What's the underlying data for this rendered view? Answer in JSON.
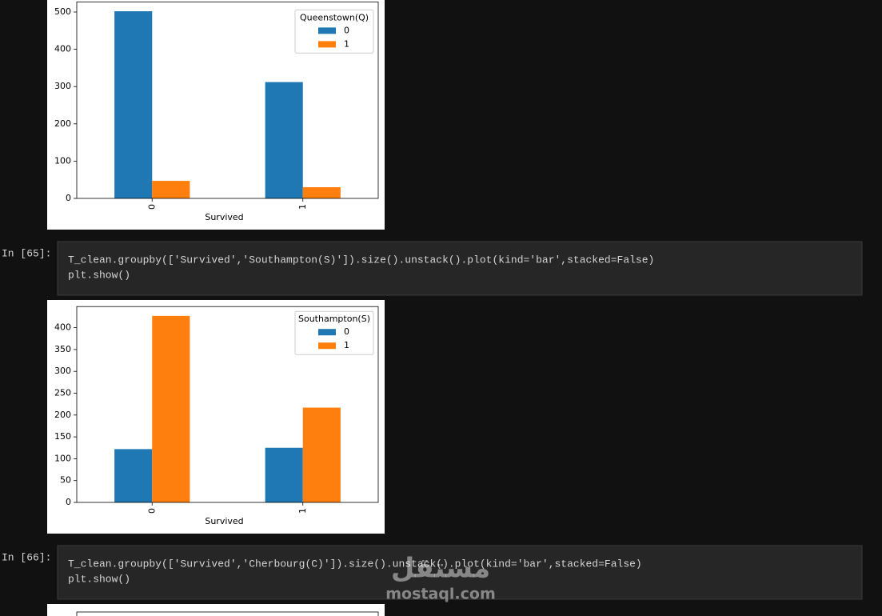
{
  "cells": [
    {
      "prompt": "In [65]:",
      "code": [
        "T_clean.groupby(['Survived','Southampton(S)']).size().unstack().plot(kind='bar',stacked=False)",
        "plt.show()"
      ]
    },
    {
      "prompt": "In [66]:",
      "code": [
        "T_clean.groupby(['Survived','Cherbourg(C)']).size().unstack().plot(kind='bar',stacked=False)",
        "plt.show()"
      ]
    }
  ],
  "watermark": {
    "logo": "مستقل",
    "text": "mostaql.com"
  },
  "chart_data": [
    {
      "type": "bar",
      "xlabel": "Survived",
      "categories": [
        "0",
        "1"
      ],
      "legend_title": "Queenstown(Q)",
      "legend": "upper right",
      "series": [
        {
          "name": "0",
          "color": "#1f77b4",
          "values": [
            502,
            312
          ]
        },
        {
          "name": "1",
          "color": "#ff7f0e",
          "values": [
            47,
            30
          ]
        }
      ],
      "ylim": [
        0,
        527.1
      ],
      "yticks": [
        0,
        100,
        200,
        300,
        400,
        500
      ]
    },
    {
      "type": "bar",
      "xlabel": "Survived",
      "categories": [
        "0",
        "1"
      ],
      "legend_title": "Southampton(S)",
      "legend": "upper right",
      "series": [
        {
          "name": "0",
          "color": "#1f77b4",
          "values": [
            122,
            125
          ]
        },
        {
          "name": "1",
          "color": "#ff7f0e",
          "values": [
            427,
            217
          ]
        }
      ],
      "ylim": [
        0,
        448.35
      ],
      "yticks": [
        0,
        50,
        100,
        150,
        200,
        250,
        300,
        350,
        400
      ]
    }
  ]
}
